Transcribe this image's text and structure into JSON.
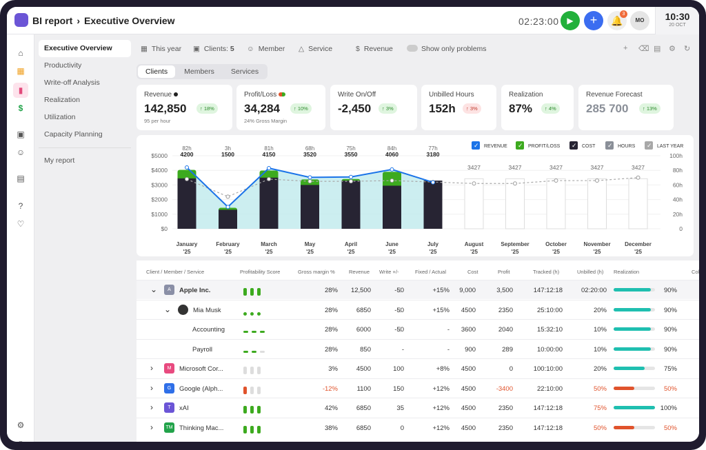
{
  "header": {
    "app": "BI report",
    "separator": "›",
    "page": "Executive Overview",
    "timer": "02:23:00",
    "notifications": "3",
    "avatar": "MO",
    "time": "10:30",
    "date": "20 OCT"
  },
  "submenu": {
    "items": [
      "Executive Overview",
      "Productivity",
      "Write-off Analysis",
      "Realization",
      "Utilization",
      "Capacity Planning"
    ],
    "extra": "My report"
  },
  "filters": {
    "year": "This year",
    "clients_label": "Clients:",
    "clients_count": "5",
    "member": "Member",
    "service": "Service",
    "revenue": "Revenue",
    "problems": "Show only problems"
  },
  "tabs": [
    "Clients",
    "Members",
    "Services"
  ],
  "kpis": [
    {
      "label": "Revenue",
      "value": "142,850",
      "badge": "↑ 18%",
      "sub": "95 per hour",
      "trend": "up"
    },
    {
      "label": "Profit/Loss",
      "value": "34,284",
      "badge": "↑ 10%",
      "sub": "24% Gross Margin",
      "trend": "up"
    },
    {
      "label": "Write On/Off",
      "value": "-2,450",
      "badge": "↑ 3%",
      "sub": "",
      "trend": "up"
    },
    {
      "label": "Unbilled Hours",
      "value": "152h",
      "badge": "↑ 3%",
      "sub": "",
      "trend": "down"
    },
    {
      "label": "Realization",
      "value": "87%",
      "badge": "↑ 4%",
      "sub": "",
      "trend": "up"
    },
    {
      "label": "Revenue Forecast",
      "value": "285 700",
      "badge": "↑ 13%",
      "sub": "",
      "trend": "up"
    }
  ],
  "chart_data": {
    "type": "bar",
    "categories": [
      "January '25",
      "February '25",
      "March '25",
      "May '25",
      "April '25",
      "June '25",
      "July '25",
      "August '25",
      "September '25",
      "October '25",
      "November '25",
      "December '25"
    ],
    "month_labels": [
      "January",
      "February",
      "March",
      "May",
      "April",
      "June",
      "July",
      "August",
      "September",
      "October",
      "November",
      "December"
    ],
    "year_label": "'25",
    "series": [
      {
        "name": "REVENUE",
        "values": [
          4200,
          1500,
          4150,
          3520,
          3550,
          4060,
          3180,
          null,
          null,
          null,
          null,
          null
        ]
      },
      {
        "name": "COST",
        "values": [
          3450,
          1300,
          3500,
          3000,
          3300,
          2950,
          3300,
          null,
          null,
          null,
          null,
          null
        ]
      },
      {
        "name": "HOURS",
        "values": [
          82,
          3,
          81,
          68,
          75,
          84,
          77,
          null,
          null,
          null,
          null,
          null
        ]
      },
      {
        "name": "LAST YEAR",
        "values": [
          3400,
          2200,
          3400,
          3250,
          3250,
          3300,
          3200,
          3100,
          3100,
          3300,
          3300,
          3500
        ]
      }
    ],
    "value_labels": [
      "4200",
      "1500",
      "4150",
      "3520",
      "3550",
      "4060",
      "3180",
      "3427",
      "3427",
      "3427",
      "3427",
      "3427"
    ],
    "hour_labels": [
      "82h",
      "3h",
      "81h",
      "68h",
      "75h",
      "84h",
      "77h",
      "",
      "",
      "",
      "",
      ""
    ],
    "forecast_value": 3427,
    "y_ticks": [
      "$0",
      "$1000",
      "$2000",
      "$3000",
      "$4000",
      "$5000"
    ],
    "y2_ticks": [
      "0",
      "20h",
      "40h",
      "60h",
      "80h",
      "100h"
    ],
    "ylim": [
      0,
      5000
    ],
    "legend": [
      "REVENUE",
      "PROFIT/LOSS",
      "COST",
      "HOURS",
      "LAST YEAR"
    ],
    "legend_position": "top-right",
    "colors": {
      "revenue": "#1a73e8",
      "profit": "#3daa1f",
      "cost": "#272433",
      "hours": "#8a8f98",
      "last_year": "#a8a8a8"
    }
  },
  "table": {
    "headers": [
      "Client / Member / Service",
      "Profitability Score",
      "Gross margin %",
      "Revenue",
      "Write +/-",
      "Fixed / Actual",
      "Cost",
      "Profit",
      "Tracked (h)",
      "Unbilled (h)",
      "Realization",
      "Colle"
    ],
    "rows": [
      {
        "name": "Apple Inc.",
        "initial": "A",
        "color": "#8a8fa6",
        "level": 0,
        "caret": "⌄",
        "score": "green-bar",
        "margin": "28%",
        "revenue": "12,500",
        "write": "-50",
        "write_icon": "(i)",
        "fixed": "+15%",
        "cost": "9,000",
        "profit": "3,500",
        "tracked": "147:12:18",
        "unbilled": "02:20:00",
        "real_pct": 90,
        "real": "90%"
      },
      {
        "name": "Mia Musk",
        "initial": "",
        "color": "#333",
        "level": 1,
        "caret": "⌄",
        "score": "green-dot",
        "margin": "28%",
        "revenue": "6850",
        "write": "-50",
        "write_icon": "(i)",
        "fixed": "+15%",
        "cost": "4500",
        "profit": "2350",
        "tracked": "25:10:00",
        "unbilled": "20%",
        "real_pct": 90,
        "real": "90%"
      },
      {
        "name": "Accounting",
        "initial": "",
        "color": "",
        "level": 2,
        "caret": "",
        "score": "green-dash",
        "margin": "28%",
        "revenue": "6000",
        "write": "-50",
        "write_icon": "(i)",
        "fixed": "-",
        "cost": "3600",
        "profit": "2040",
        "tracked": "15:32:10",
        "unbilled": "10%",
        "real_pct": 90,
        "real": "90%"
      },
      {
        "name": "Payroll",
        "initial": "",
        "color": "",
        "level": 2,
        "caret": "",
        "score": "green-dash-1",
        "margin": "28%",
        "revenue": "850",
        "write": "-",
        "write_icon": "",
        "fixed": "-",
        "cost": "900",
        "profit": "289",
        "tracked": "10:00:00",
        "unbilled": "10%",
        "real_pct": 90,
        "real": "90%"
      },
      {
        "name": "Microsoft Cor...",
        "initial": "M",
        "color": "#e84a7f",
        "level": 0,
        "caret": "›",
        "score": "empty",
        "margin": "3%",
        "revenue": "4500",
        "write": "100",
        "write_icon": "",
        "fixed": "+8%",
        "cost": "4500",
        "profit": "0",
        "tracked": "100:10:00",
        "unbilled": "20%",
        "real_pct": 75,
        "real": "75%"
      },
      {
        "name": "Google (Alph...",
        "initial": "G",
        "color": "#2f6fe8",
        "level": 0,
        "caret": "›",
        "score": "red-one",
        "margin": "-12%",
        "revenue": "1100",
        "write": "150",
        "write_icon": "",
        "fixed": "+12%",
        "cost": "4500",
        "profit": "-3400",
        "tracked": "22:10:00",
        "unbilled": "50%",
        "real_pct": 50,
        "real": "50%",
        "red": true
      },
      {
        "name": "xAI",
        "initial": "T",
        "color": "#6b55d6",
        "level": 0,
        "caret": "›",
        "score": "green-bar",
        "margin": "42%",
        "revenue": "6850",
        "write": "35",
        "write_icon": "",
        "fixed": "+12%",
        "cost": "4500",
        "profit": "2350",
        "tracked": "147:12:18",
        "unbilled": "75%",
        "real_pct": 100,
        "real": "100%",
        "unb_red": true
      },
      {
        "name": "Thinking Mac...",
        "initial": "TM",
        "color": "#22a34a",
        "level": 0,
        "caret": "›",
        "score": "green-bar",
        "margin": "38%",
        "revenue": "6850",
        "write": "0",
        "write_icon": "",
        "fixed": "+12%",
        "cost": "4500",
        "profit": "2350",
        "tracked": "147:12:18",
        "unbilled": "50%",
        "real_pct": 50,
        "real": "50%",
        "red_real": true
      }
    ]
  }
}
